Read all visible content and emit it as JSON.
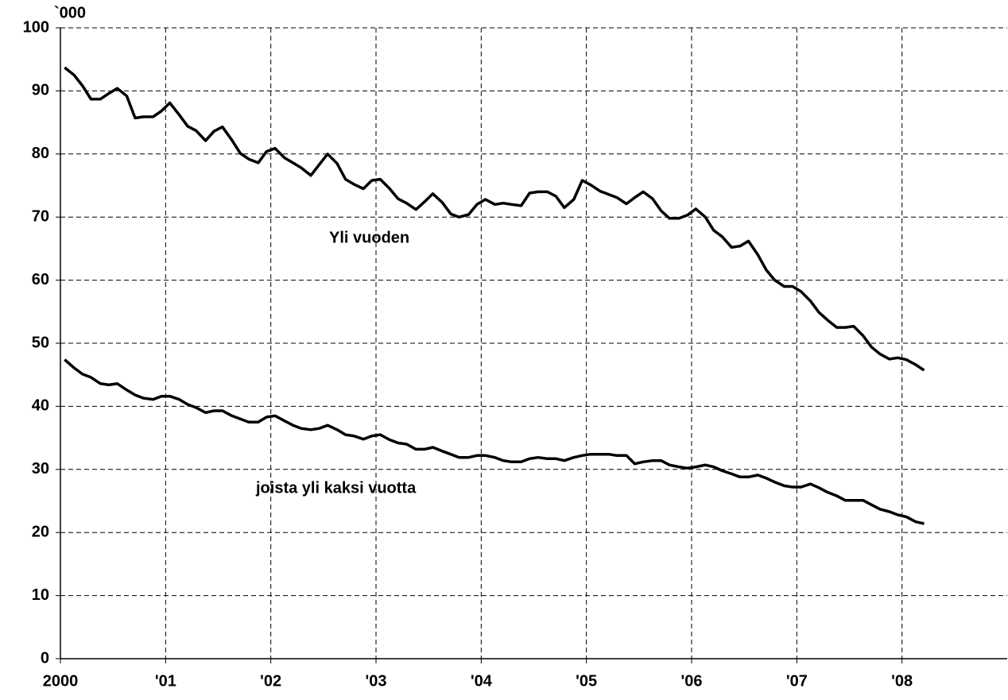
{
  "chart_data": {
    "type": "line",
    "unit_label": "`000",
    "x": [
      2000.04,
      2000.13,
      2000.21,
      2000.29,
      2000.38,
      2000.46,
      2000.54,
      2000.63,
      2000.71,
      2000.79,
      2000.88,
      2000.96,
      2001.04,
      2001.13,
      2001.21,
      2001.29,
      2001.38,
      2001.46,
      2001.54,
      2001.63,
      2001.71,
      2001.79,
      2001.88,
      2001.96,
      2002.04,
      2002.13,
      2002.21,
      2002.29,
      2002.38,
      2002.46,
      2002.54,
      2002.63,
      2002.71,
      2002.79,
      2002.88,
      2002.96,
      2003.04,
      2003.13,
      2003.21,
      2003.29,
      2003.38,
      2003.46,
      2003.54,
      2003.63,
      2003.71,
      2003.79,
      2003.88,
      2003.96,
      2004.04,
      2004.13,
      2004.21,
      2004.29,
      2004.38,
      2004.46,
      2004.54,
      2004.63,
      2004.71,
      2004.79,
      2004.88,
      2004.96,
      2005.04,
      2005.13,
      2005.21,
      2005.29,
      2005.38,
      2005.46,
      2005.54,
      2005.63,
      2005.71,
      2005.79,
      2005.88,
      2005.96,
      2006.04,
      2006.13,
      2006.21,
      2006.29,
      2006.38,
      2006.46,
      2006.54,
      2006.63,
      2006.71,
      2006.79,
      2006.88,
      2006.96,
      2007.04,
      2007.13,
      2007.21,
      2007.29,
      2007.38,
      2007.46,
      2007.54,
      2007.63,
      2007.71,
      2007.79,
      2007.88,
      2007.96,
      2008.04,
      2008.13,
      2008.21
    ],
    "series": [
      {
        "name": "Yli vuoden",
        "color": "#000000",
        "values": [
          93.7,
          92.5,
          90.8,
          88.7,
          88.7,
          89.6,
          90.4,
          89.2,
          85.7,
          85.9,
          85.9,
          86.8,
          88.1,
          86.2,
          84.4,
          83.7,
          82.1,
          83.6,
          84.3,
          82.2,
          80.1,
          79.2,
          78.6,
          80.4,
          80.9,
          79.4,
          78.6,
          77.8,
          76.6,
          78.3,
          80.0,
          78.5,
          76.0,
          75.2,
          74.5,
          75.8,
          76.0,
          74.5,
          72.9,
          72.2,
          71.2,
          72.4,
          73.7,
          72.3,
          70.5,
          70.0,
          70.4,
          72.0,
          72.8,
          72.0,
          72.2,
          72.0,
          71.8,
          73.8,
          74.0,
          74.0,
          73.3,
          71.5,
          72.8,
          75.8,
          75.1,
          74.1,
          73.6,
          73.1,
          72.1,
          73.1,
          74.0,
          72.9,
          71.0,
          69.8,
          69.8,
          70.3,
          71.3,
          70.0,
          67.9,
          66.9,
          65.2,
          65.4,
          66.2,
          64.0,
          61.6,
          60.0,
          59.0,
          59.0,
          58.2,
          56.7,
          54.9,
          53.7,
          52.5,
          52.5,
          52.7,
          51.2,
          49.4,
          48.3,
          47.5,
          47.7,
          47.4,
          46.6,
          45.7
        ]
      },
      {
        "name": "joista yli kaksi vuotta",
        "color": "#000000",
        "values": [
          47.4,
          46.1,
          45.1,
          44.6,
          43.6,
          43.4,
          43.6,
          42.6,
          41.8,
          41.3,
          41.1,
          41.6,
          41.6,
          41.1,
          40.3,
          39.8,
          39.0,
          39.3,
          39.3,
          38.5,
          38.0,
          37.5,
          37.5,
          38.3,
          38.5,
          37.7,
          37.0,
          36.5,
          36.3,
          36.5,
          37.0,
          36.3,
          35.5,
          35.3,
          34.8,
          35.3,
          35.5,
          34.7,
          34.2,
          34.0,
          33.2,
          33.2,
          33.5,
          32.9,
          32.4,
          31.9,
          31.9,
          32.2,
          32.2,
          31.9,
          31.4,
          31.2,
          31.2,
          31.7,
          31.9,
          31.7,
          31.7,
          31.4,
          31.9,
          32.2,
          32.4,
          32.4,
          32.4,
          32.2,
          32.2,
          30.9,
          31.2,
          31.4,
          31.4,
          30.7,
          30.4,
          30.2,
          30.4,
          30.7,
          30.4,
          29.8,
          29.3,
          28.8,
          28.8,
          29.1,
          28.6,
          28.0,
          27.4,
          27.2,
          27.2,
          27.7,
          27.1,
          26.4,
          25.8,
          25.1,
          25.1,
          25.1,
          24.4,
          23.7,
          23.3,
          22.8,
          22.5,
          21.7,
          21.4
        ]
      }
    ],
    "xlim": [
      2000,
      2009
    ],
    "xticks": [
      {
        "value": 2000,
        "label": "2000"
      },
      {
        "value": 2001,
        "label": "'01"
      },
      {
        "value": 2002,
        "label": "'02"
      },
      {
        "value": 2003,
        "label": "'03"
      },
      {
        "value": 2004,
        "label": "'04"
      },
      {
        "value": 2005,
        "label": "'05"
      },
      {
        "value": 2006,
        "label": "'06"
      },
      {
        "value": 2007,
        "label": "'07"
      },
      {
        "value": 2008,
        "label": "'08"
      }
    ],
    "ylim": [
      0,
      100
    ],
    "yticks": [
      0,
      10,
      20,
      30,
      40,
      50,
      60,
      70,
      80,
      90,
      100
    ],
    "grid": true
  }
}
